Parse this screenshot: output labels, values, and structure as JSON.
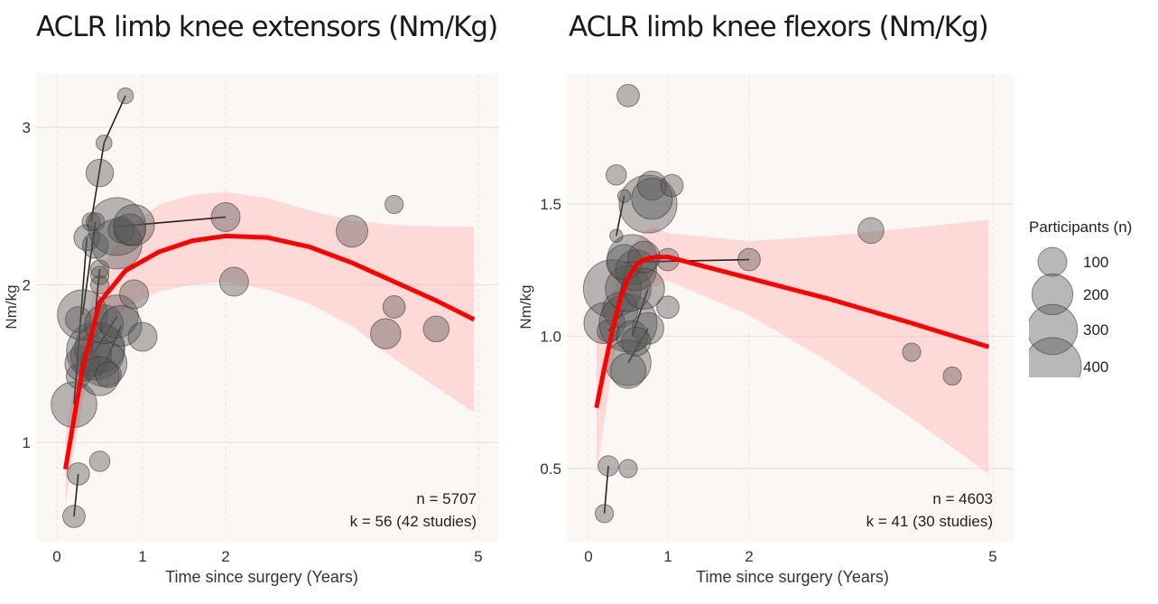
{
  "chart_data": [
    {
      "type": "scatter",
      "title": "ACLR limb knee extensors (Nm/Kg)",
      "xlabel": "Time since surgery (Years)",
      "ylabel": "Nm/kg",
      "xticks": [
        "0",
        "1",
        "2",
        "5"
      ],
      "yticks": [
        "1",
        "2",
        "3"
      ],
      "ylim": [
        0.55,
        3.33
      ],
      "grid": true,
      "annotation": [
        "n = 5707",
        "k = 56 (42 studies)"
      ],
      "points": [
        {
          "x": 0.2,
          "y": 0.53,
          "n": 60
        },
        {
          "x": 0.25,
          "y": 0.8,
          "n": 60
        },
        {
          "x": 0.5,
          "y": 0.88,
          "n": 50
        },
        {
          "x": 0.2,
          "y": 1.24,
          "n": 250
        },
        {
          "x": 0.25,
          "y": 1.42,
          "n": 70
        },
        {
          "x": 0.3,
          "y": 1.5,
          "n": 150
        },
        {
          "x": 0.4,
          "y": 1.55,
          "n": 200
        },
        {
          "x": 0.5,
          "y": 1.6,
          "n": 300
        },
        {
          "x": 0.45,
          "y": 1.58,
          "n": 400
        },
        {
          "x": 0.55,
          "y": 1.5,
          "n": 250
        },
        {
          "x": 0.5,
          "y": 1.42,
          "n": 180
        },
        {
          "x": 0.6,
          "y": 1.43,
          "n": 80
        },
        {
          "x": 0.25,
          "y": 1.78,
          "n": 80
        },
        {
          "x": 0.3,
          "y": 1.81,
          "n": 300
        },
        {
          "x": 0.55,
          "y": 1.75,
          "n": 180
        },
        {
          "x": 0.7,
          "y": 1.8,
          "n": 220
        },
        {
          "x": 0.75,
          "y": 1.74,
          "n": 200
        },
        {
          "x": 0.5,
          "y": 2.0,
          "n": 40
        },
        {
          "x": 0.5,
          "y": 2.06,
          "n": 40
        },
        {
          "x": 0.5,
          "y": 2.1,
          "n": 40
        },
        {
          "x": 0.35,
          "y": 2.3,
          "n": 80
        },
        {
          "x": 0.45,
          "y": 2.25,
          "n": 80
        },
        {
          "x": 0.4,
          "y": 2.4,
          "n": 40
        },
        {
          "x": 0.45,
          "y": 2.4,
          "n": 40
        },
        {
          "x": 0.7,
          "y": 2.26,
          "n": 300
        },
        {
          "x": 0.7,
          "y": 2.37,
          "n": 400
        },
        {
          "x": 0.75,
          "y": 2.35,
          "n": 80
        },
        {
          "x": 0.85,
          "y": 2.35,
          "n": 120
        },
        {
          "x": 0.9,
          "y": 2.38,
          "n": 200
        },
        {
          "x": 0.5,
          "y": 2.71,
          "n": 90
        },
        {
          "x": 0.55,
          "y": 2.9,
          "n": 30
        },
        {
          "x": 0.8,
          "y": 3.2,
          "n": 30
        },
        {
          "x": 0.9,
          "y": 1.94,
          "n": 100
        },
        {
          "x": 1.0,
          "y": 1.67,
          "n": 100
        },
        {
          "x": 2.0,
          "y": 2.43,
          "n": 100
        },
        {
          "x": 2.1,
          "y": 2.02,
          "n": 100
        },
        {
          "x": 3.5,
          "y": 2.34,
          "n": 120
        },
        {
          "x": 4.0,
          "y": 2.51,
          "n": 40
        },
        {
          "x": 4.0,
          "y": 1.86,
          "n": 60
        },
        {
          "x": 3.9,
          "y": 1.69,
          "n": 110
        },
        {
          "x": 4.5,
          "y": 1.72,
          "n": 80
        }
      ],
      "segments": [
        {
          "x1": 0.2,
          "y1": 0.53,
          "x2": 0.25,
          "y2": 0.8
        },
        {
          "x1": 0.4,
          "y1": 2.4,
          "x2": 0.55,
          "y2": 2.9
        },
        {
          "x1": 0.55,
          "y1": 2.9,
          "x2": 0.8,
          "y2": 3.2
        },
        {
          "x1": 0.2,
          "y1": 1.24,
          "x2": 0.35,
          "y2": 2.3
        },
        {
          "x1": 0.3,
          "y1": 1.81,
          "x2": 0.45,
          "y2": 2.4
        },
        {
          "x1": 0.45,
          "y1": 1.58,
          "x2": 0.7,
          "y2": 1.8
        },
        {
          "x1": 0.5,
          "y1": 1.42,
          "x2": 0.75,
          "y2": 1.74
        },
        {
          "x1": 0.7,
          "y1": 2.37,
          "x2": 2.0,
          "y2": 2.43
        },
        {
          "x1": 0.4,
          "y1": 1.55,
          "x2": 0.5,
          "y2": 2.1
        }
      ],
      "fit": {
        "x": [
          0.1,
          0.3,
          0.5,
          0.8,
          1.2,
          1.6,
          2.0,
          2.5,
          3.0,
          3.5,
          4.0,
          4.5,
          4.95
        ],
        "y": [
          0.83,
          1.47,
          1.89,
          2.09,
          2.21,
          2.28,
          2.31,
          2.3,
          2.24,
          2.14,
          2.02,
          1.9,
          1.78
        ]
      },
      "ci_upper": [
        1.04,
        1.68,
        2.09,
        2.35,
        2.51,
        2.57,
        2.59,
        2.55,
        2.47,
        2.41,
        2.38,
        2.37,
        2.37
      ],
      "ci_lower": [
        0.6,
        1.27,
        1.69,
        1.85,
        1.96,
        2.0,
        2.02,
        1.97,
        1.88,
        1.74,
        1.53,
        1.35,
        1.19
      ]
    },
    {
      "type": "scatter",
      "title": "ACLR limb knee flexors (Nm/Kg)",
      "xlabel": "Time since surgery (Years)",
      "ylabel": "Nm/kg",
      "xticks": [
        "0",
        "1",
        "2",
        "5"
      ],
      "yticks": [
        "0.5",
        "1.0",
        "1.5"
      ],
      "ylim": [
        0.3,
        1.97
      ],
      "grid": true,
      "annotation": [
        "n = 4603",
        "k = 41 (30 studies)"
      ],
      "points": [
        {
          "x": 0.2,
          "y": 0.33,
          "n": 40
        },
        {
          "x": 0.25,
          "y": 0.51,
          "n": 50
        },
        {
          "x": 0.5,
          "y": 0.5,
          "n": 40
        },
        {
          "x": 0.2,
          "y": 1.05,
          "n": 200
        },
        {
          "x": 0.25,
          "y": 1.02,
          "n": 60
        },
        {
          "x": 0.3,
          "y": 1.18,
          "n": 400
        },
        {
          "x": 0.4,
          "y": 1.1,
          "n": 150
        },
        {
          "x": 0.5,
          "y": 1.05,
          "n": 400
        },
        {
          "x": 0.5,
          "y": 1.18,
          "n": 250
        },
        {
          "x": 0.55,
          "y": 1.0,
          "n": 120
        },
        {
          "x": 0.5,
          "y": 0.9,
          "n": 250
        },
        {
          "x": 0.5,
          "y": 0.87,
          "n": 150
        },
        {
          "x": 0.55,
          "y": 1.29,
          "n": 300
        },
        {
          "x": 0.6,
          "y": 1.25,
          "n": 200
        },
        {
          "x": 0.7,
          "y": 1.18,
          "n": 200
        },
        {
          "x": 0.75,
          "y": 1.03,
          "n": 120
        },
        {
          "x": 0.6,
          "y": 0.98,
          "n": 100
        },
        {
          "x": 0.45,
          "y": 1.28,
          "n": 150
        },
        {
          "x": 0.75,
          "y": 1.5,
          "n": 400
        },
        {
          "x": 0.8,
          "y": 1.52,
          "n": 200
        },
        {
          "x": 0.8,
          "y": 1.57,
          "n": 100
        },
        {
          "x": 0.35,
          "y": 1.38,
          "n": 20
        },
        {
          "x": 0.45,
          "y": 1.53,
          "n": 20
        },
        {
          "x": 0.35,
          "y": 1.61,
          "n": 50
        },
        {
          "x": 0.5,
          "y": 1.91,
          "n": 60
        },
        {
          "x": 1.05,
          "y": 1.57,
          "n": 60
        },
        {
          "x": 1.0,
          "y": 1.29,
          "n": 60
        },
        {
          "x": 1.0,
          "y": 1.11,
          "n": 60
        },
        {
          "x": 0.7,
          "y": 1.3,
          "n": 120
        },
        {
          "x": 2.0,
          "y": 1.29,
          "n": 60
        },
        {
          "x": 3.5,
          "y": 1.4,
          "n": 80
        },
        {
          "x": 4.0,
          "y": 0.94,
          "n": 40
        },
        {
          "x": 4.5,
          "y": 0.85,
          "n": 40
        }
      ],
      "segments": [
        {
          "x1": 0.2,
          "y1": 0.33,
          "x2": 0.25,
          "y2": 0.51
        },
        {
          "x1": 0.35,
          "y1": 1.38,
          "x2": 0.45,
          "y2": 1.53
        },
        {
          "x1": 0.5,
          "y1": 0.9,
          "x2": 0.75,
          "y2": 1.03
        },
        {
          "x1": 0.55,
          "y1": 1.0,
          "x2": 0.75,
          "y2": 1.18
        },
        {
          "x1": 0.45,
          "y1": 1.28,
          "x2": 2.0,
          "y2": 1.29
        },
        {
          "x1": 0.3,
          "y1": 1.05,
          "x2": 0.5,
          "y2": 1.28
        },
        {
          "x1": 0.25,
          "y1": 1.02,
          "x2": 0.45,
          "y2": 1.1
        }
      ],
      "fit": {
        "x": [
          0.1,
          0.2,
          0.3,
          0.4,
          0.5,
          0.6,
          0.7,
          0.85,
          1.0,
          2.0,
          3.0,
          4.0,
          4.95
        ],
        "y": [
          0.73,
          0.88,
          1.02,
          1.14,
          1.22,
          1.27,
          1.29,
          1.3,
          1.3,
          1.22,
          1.14,
          1.05,
          0.96
        ]
      },
      "ci_upper": [
        0.98,
        1.08,
        1.16,
        1.24,
        1.3,
        1.36,
        1.4,
        1.41,
        1.39,
        1.36,
        1.38,
        1.41,
        1.44
      ],
      "ci_lower": [
        0.48,
        0.68,
        0.88,
        1.04,
        1.14,
        1.18,
        1.18,
        1.19,
        1.21,
        1.08,
        0.9,
        0.69,
        0.48
      ]
    }
  ],
  "legend": {
    "title": "Participants (n)",
    "items": [
      {
        "label": "100",
        "n": 100
      },
      {
        "label": "200",
        "n": 200
      },
      {
        "label": "300",
        "n": 300
      },
      {
        "label": "400",
        "n": 400
      }
    ]
  },
  "colors": {
    "panel_bg": "#fbf7f4",
    "grid": "#ece6e2",
    "fit": "#ff0000",
    "ci": "#ffb3b3",
    "point": "#555555"
  }
}
